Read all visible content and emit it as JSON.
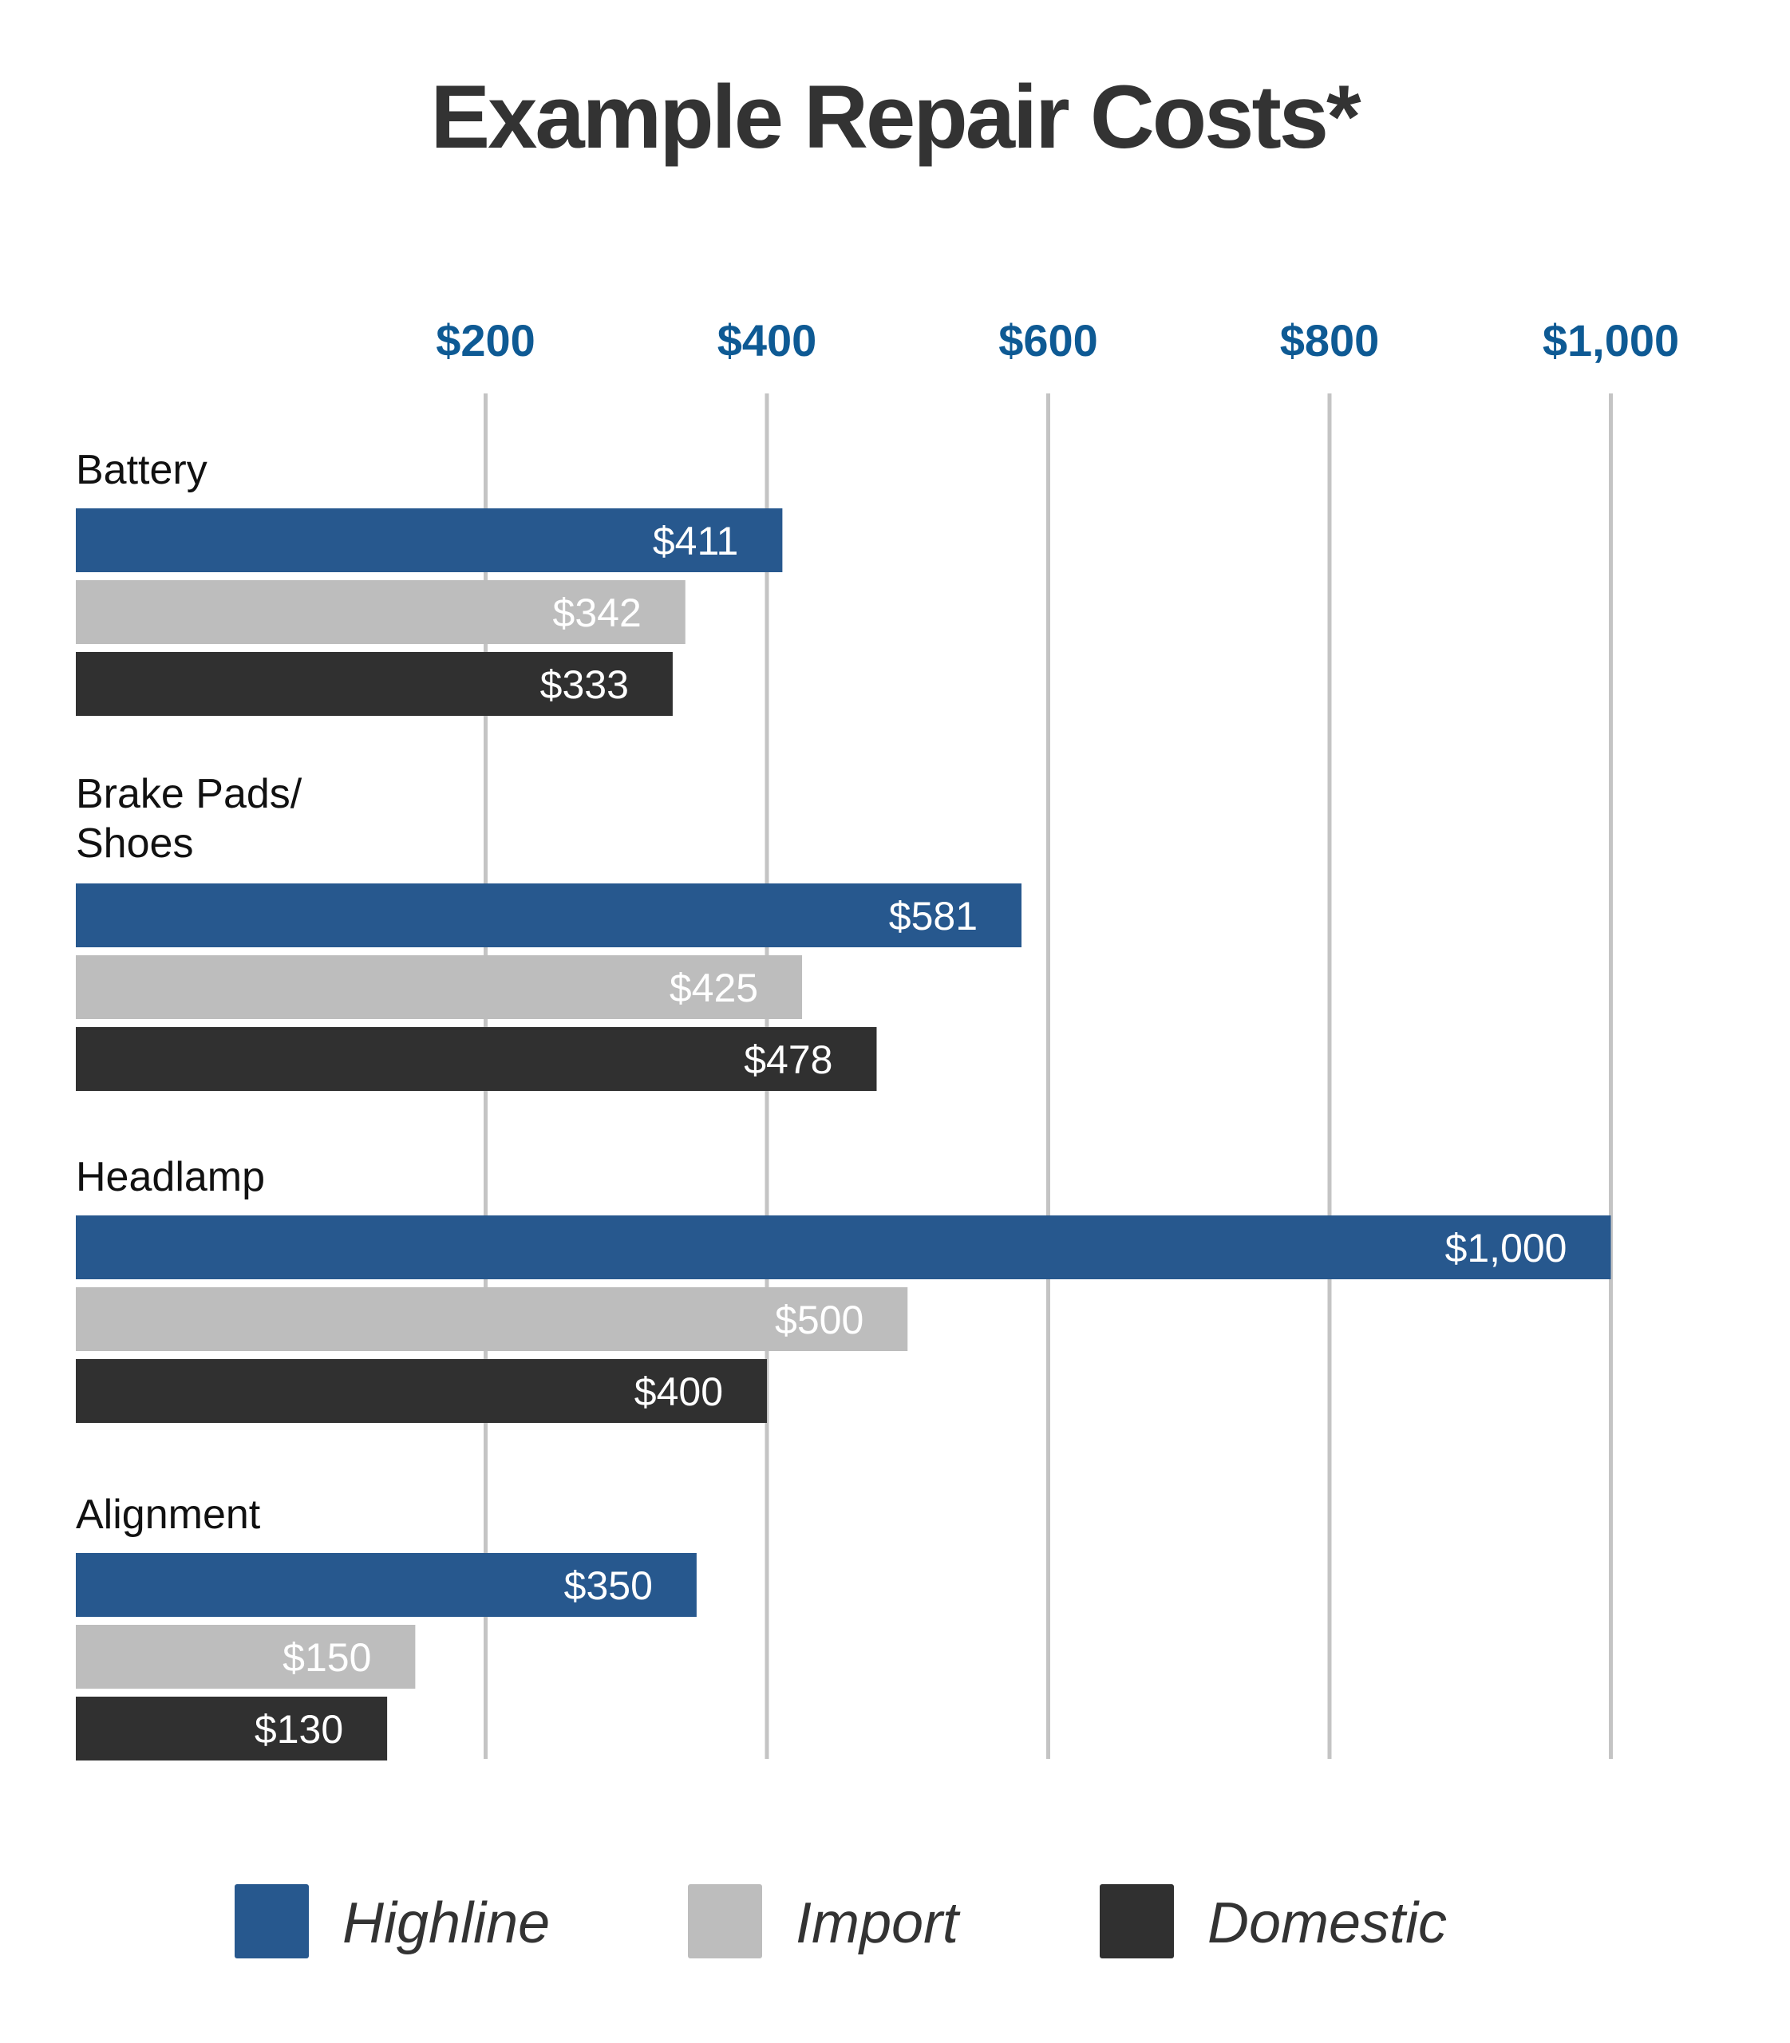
{
  "chart_data": {
    "type": "bar",
    "orientation": "horizontal",
    "title": "Example Repair Costs*",
    "xlabel": "",
    "ylabel": "",
    "xlim": [
      0,
      1000
    ],
    "ticks": [
      200,
      400,
      600,
      800,
      1000
    ],
    "tick_labels": [
      "$200",
      "$400",
      "$600",
      "$800",
      "$1,000"
    ],
    "grid": true,
    "tick_position": "top",
    "legend_position": "bottom",
    "categories": [
      "Battery",
      "Brake Pads/ Shoes",
      "Headlamp",
      "Alignment"
    ],
    "category_lines": [
      [
        "Battery"
      ],
      [
        "Brake Pads/",
        "Shoes"
      ],
      [
        "Headlamp"
      ],
      [
        "Alignment"
      ]
    ],
    "series": [
      {
        "name": "Highline",
        "color": "#27588e",
        "values": [
          411,
          581,
          1000,
          350
        ],
        "labels": [
          "$411",
          "$581",
          "$1,000",
          "$350"
        ]
      },
      {
        "name": "Import",
        "color": "#bdbdbd",
        "values": [
          342,
          425,
          500,
          150
        ],
        "labels": [
          "$342",
          "$425",
          "$500",
          "$150"
        ]
      },
      {
        "name": "Domestic",
        "color": "#303030",
        "values": [
          333,
          478,
          400,
          130
        ],
        "labels": [
          "$333",
          "$478",
          "$400",
          "$130"
        ]
      }
    ]
  }
}
